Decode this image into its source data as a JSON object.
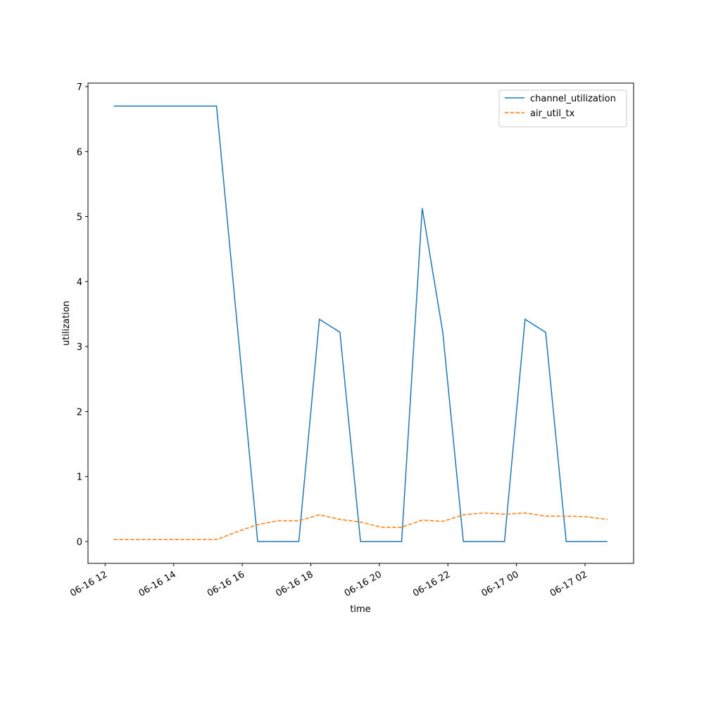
{
  "chart_data": {
    "type": "line",
    "xlabel": "time",
    "ylabel": "utilization",
    "x": [
      "06-16 12:15",
      "06-16 12:51",
      "06-16 13:27",
      "06-16 14:03",
      "06-16 14:39",
      "06-16 15:15",
      "06-16 15:51",
      "06-16 16:27",
      "06-16 17:03",
      "06-16 17:39",
      "06-16 18:15",
      "06-16 18:51",
      "06-16 19:27",
      "06-16 20:03",
      "06-16 20:39",
      "06-16 21:15",
      "06-16 21:51",
      "06-16 22:27",
      "06-16 23:03",
      "06-16 23:39",
      "06-17 00:15",
      "06-17 00:51",
      "06-17 01:27",
      "06-17 02:03",
      "06-17 02:39"
    ],
    "series": [
      {
        "name": "channel_utilization",
        "color": "#1f77b4",
        "dash": "solid",
        "values": [
          6.7,
          6.7,
          6.7,
          6.7,
          6.7,
          6.7,
          3.35,
          0,
          0,
          0,
          3.42,
          3.22,
          0,
          0,
          0,
          5.13,
          3.22,
          0,
          0,
          0,
          3.42,
          3.22,
          0,
          0,
          0
        ]
      },
      {
        "name": "air_util_tx",
        "color": "#ff7f0e",
        "dash": "dashed",
        "values": [
          0.03,
          0.03,
          0.03,
          0.03,
          0.03,
          0.03,
          0.15,
          0.26,
          0.32,
          0.32,
          0.41,
          0.34,
          0.3,
          0.22,
          0.22,
          0.33,
          0.31,
          0.41,
          0.44,
          0.42,
          0.44,
          0.39,
          0.39,
          0.38,
          0.34
        ]
      }
    ],
    "xlim": [
      "06-16 11:30",
      "06-17 03:25"
    ],
    "xticks": [
      {
        "value": "06-16 12:00",
        "label": "06-16 12"
      },
      {
        "value": "06-16 14:00",
        "label": "06-16 14"
      },
      {
        "value": "06-16 16:00",
        "label": "06-16 16"
      },
      {
        "value": "06-16 18:00",
        "label": "06-16 18"
      },
      {
        "value": "06-16 20:00",
        "label": "06-16 20"
      },
      {
        "value": "06-16 22:00",
        "label": "06-16 22"
      },
      {
        "value": "06-17 00:00",
        "label": "06-17 00"
      },
      {
        "value": "06-17 02:00",
        "label": "06-17 02"
      }
    ],
    "ylim": [
      -0.336,
      7.054
    ],
    "yticks": [
      0,
      1,
      2,
      3,
      4,
      5,
      6,
      7
    ],
    "legend": "upper right",
    "grid": false
  }
}
